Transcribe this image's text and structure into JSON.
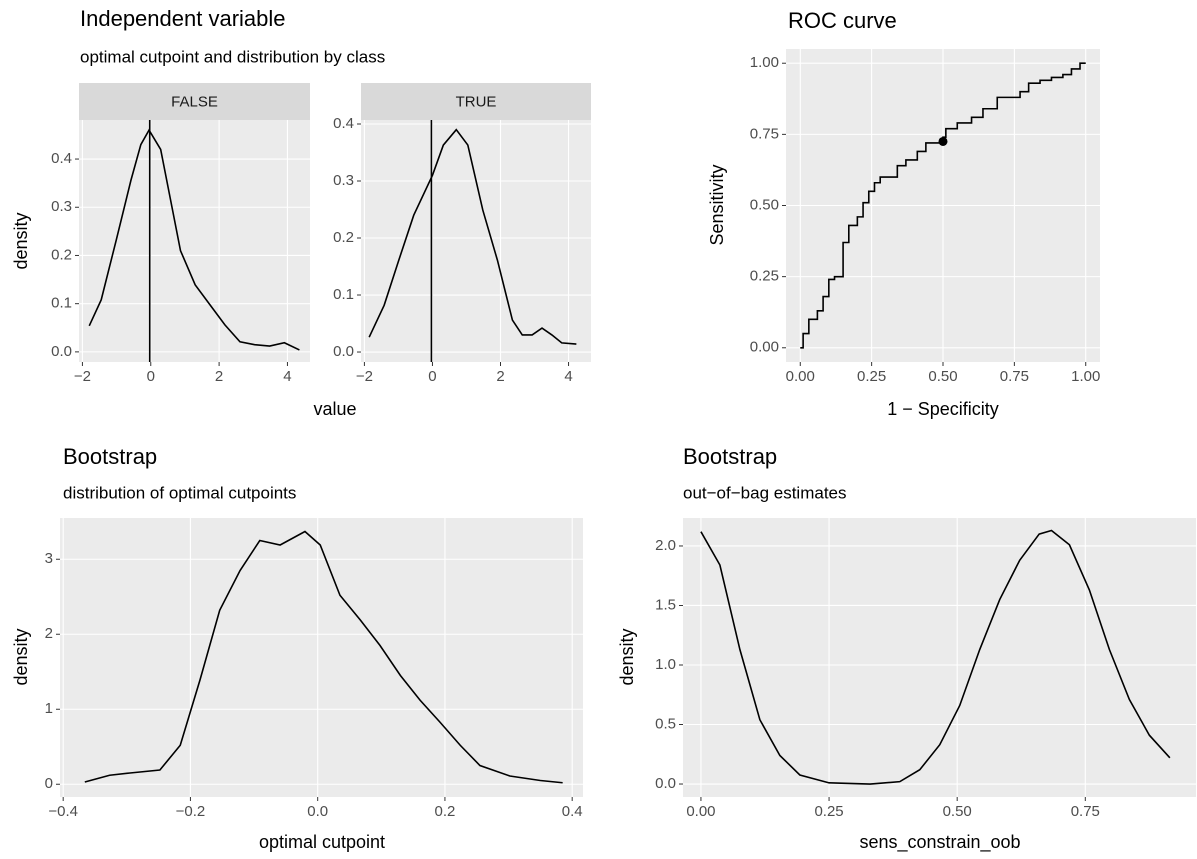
{
  "chart_data": [
    {
      "type": "line",
      "title": "Independent variable",
      "subtitle": "optimal cutpoint and distribution by class",
      "xlabel": "value",
      "ylabel": "density",
      "xlim": [
        -2.1,
        4.66
      ],
      "xticks": [
        {
          "value": -2,
          "label": "−2"
        },
        0,
        2,
        4
      ],
      "facets": [
        {
          "name": "FALSE",
          "color": "#000000",
          "vline": -0.03,
          "ylim": [
            -0.021,
            0.481
          ],
          "yticks": [
            {
              "value": 0,
              "label": "0.0"
            },
            0.1,
            0.2,
            0.3,
            0.4
          ],
          "x": [
            -1.8,
            -1.45,
            -1.01,
            -0.58,
            -0.29,
            -0.05,
            0.29,
            0.58,
            0.87,
            1.3,
            1.74,
            2.17,
            2.61,
            3.04,
            3.48,
            3.91,
            4.35
          ],
          "values": [
            0.054,
            0.108,
            0.232,
            0.356,
            0.43,
            0.46,
            0.42,
            0.315,
            0.21,
            0.139,
            0.097,
            0.056,
            0.021,
            0.015,
            0.012,
            0.019,
            0.004
          ]
        },
        {
          "name": "TRUE",
          "color": "#000000",
          "vline": -0.03,
          "ylim": [
            -0.0175,
            0.407
          ],
          "yticks": [
            {
              "value": 0,
              "label": "0.0"
            },
            0.1,
            0.2,
            0.3,
            0.4
          ],
          "x": [
            -1.86,
            -1.42,
            -0.99,
            -0.55,
            0.0,
            0.32,
            0.7,
            1.04,
            1.48,
            1.91,
            2.35,
            2.64,
            2.93,
            3.22,
            3.51,
            3.8,
            4.23
          ],
          "values": [
            0.026,
            0.082,
            0.161,
            0.24,
            0.31,
            0.363,
            0.39,
            0.363,
            0.249,
            0.161,
            0.056,
            0.03,
            0.03,
            0.042,
            0.03,
            0.016,
            0.014
          ]
        }
      ]
    },
    {
      "type": "step",
      "title": "ROC curve",
      "xlabel": "1 − Specificity",
      "ylabel": "Sensitivity",
      "color": "#000000",
      "xlim": [
        -0.05,
        1.05
      ],
      "ylim": [
        -0.05,
        1.05
      ],
      "xticks": [
        {
          "value": 0,
          "label": "0.00"
        },
        0.25,
        {
          "value": 0.5,
          "label": "0.50"
        },
        0.75,
        {
          "value": 1,
          "label": "1.00"
        }
      ],
      "yticks": [
        {
          "value": 0,
          "label": "0.00"
        },
        0.25,
        {
          "value": 0.5,
          "label": "0.50"
        },
        0.75,
        {
          "value": 1,
          "label": "1.00"
        }
      ],
      "x": [
        0,
        0.01,
        0.01,
        0.03,
        0.03,
        0.06,
        0.06,
        0.08,
        0.08,
        0.1,
        0.1,
        0.12,
        0.12,
        0.15,
        0.15,
        0.17,
        0.17,
        0.2,
        0.2,
        0.22,
        0.22,
        0.24,
        0.24,
        0.26,
        0.26,
        0.28,
        0.28,
        0.34,
        0.34,
        0.37,
        0.37,
        0.41,
        0.41,
        0.44,
        0.44,
        0.5,
        0.5,
        0.51,
        0.51,
        0.55,
        0.55,
        0.6,
        0.6,
        0.64,
        0.64,
        0.69,
        0.69,
        0.77,
        0.77,
        0.8,
        0.8,
        0.84,
        0.84,
        0.88,
        0.88,
        0.92,
        0.92,
        0.95,
        0.95,
        0.98,
        0.98,
        1
      ],
      "values": [
        0,
        0,
        0.05,
        0.05,
        0.1,
        0.1,
        0.13,
        0.13,
        0.18,
        0.18,
        0.24,
        0.24,
        0.25,
        0.25,
        0.37,
        0.37,
        0.43,
        0.43,
        0.46,
        0.46,
        0.51,
        0.51,
        0.55,
        0.55,
        0.58,
        0.58,
        0.6,
        0.6,
        0.64,
        0.64,
        0.66,
        0.66,
        0.69,
        0.69,
        0.72,
        0.72,
        0.74,
        0.74,
        0.77,
        0.77,
        0.79,
        0.79,
        0.81,
        0.81,
        0.84,
        0.84,
        0.88,
        0.88,
        0.9,
        0.9,
        0.93,
        0.93,
        0.94,
        0.94,
        0.95,
        0.95,
        0.96,
        0.96,
        0.98,
        0.98,
        1,
        1
      ],
      "point": {
        "x": 0.5,
        "y": 0.725
      }
    },
    {
      "type": "line",
      "title": "Bootstrap",
      "subtitle": "distribution of optimal cutpoints",
      "xlabel": "optimal cutpoint",
      "ylabel": "density",
      "color": "#000000",
      "xlim": [
        -0.405,
        0.417
      ],
      "ylim": [
        -0.17,
        3.55
      ],
      "xticks": [
        {
          "value": -0.4,
          "label": "−0.4"
        },
        {
          "value": -0.2,
          "label": "−0.2"
        },
        {
          "value": 0,
          "label": "0.0"
        },
        0.2,
        0.4
      ],
      "yticks": [
        0,
        1,
        2,
        3
      ],
      "x": [
        -0.366,
        -0.327,
        -0.295,
        -0.248,
        -0.216,
        -0.185,
        -0.154,
        -0.122,
        -0.091,
        -0.059,
        -0.02,
        0.004,
        0.035,
        0.067,
        0.098,
        0.13,
        0.161,
        0.192,
        0.224,
        0.255,
        0.302,
        0.35,
        0.385
      ],
      "values": [
        0.03,
        0.12,
        0.15,
        0.19,
        0.52,
        1.39,
        2.32,
        2.85,
        3.25,
        3.19,
        3.37,
        3.19,
        2.52,
        2.19,
        1.85,
        1.45,
        1.12,
        0.83,
        0.52,
        0.25,
        0.11,
        0.05,
        0.02
      ]
    },
    {
      "type": "line",
      "title": "Bootstrap",
      "subtitle": "out−of−bag estimates",
      "xlabel": "sens_constrain_oob",
      "ylabel": "density",
      "color": "#000000",
      "xlim": [
        -0.035,
        0.966
      ],
      "ylim": [
        -0.109,
        2.235
      ],
      "xticks": [
        {
          "value": 0,
          "label": "0.00"
        },
        0.25,
        {
          "value": 0.5,
          "label": "0.50"
        },
        0.75
      ],
      "yticks": [
        {
          "value": 0,
          "label": "0.0"
        },
        0.5,
        {
          "value": 1,
          "label": "1.0"
        },
        1.5,
        {
          "value": 2,
          "label": "2.0"
        }
      ],
      "x": [
        0,
        0.037,
        0.076,
        0.115,
        0.154,
        0.193,
        0.25,
        0.33,
        0.388,
        0.427,
        0.466,
        0.505,
        0.544,
        0.583,
        0.622,
        0.66,
        0.684,
        0.719,
        0.758,
        0.797,
        0.836,
        0.875,
        0.915
      ],
      "values": [
        2.12,
        1.84,
        1.13,
        0.54,
        0.24,
        0.076,
        0.01,
        0.0,
        0.02,
        0.12,
        0.33,
        0.66,
        1.13,
        1.55,
        1.88,
        2.1,
        2.13,
        2.01,
        1.63,
        1.13,
        0.71,
        0.41,
        0.22
      ]
    }
  ]
}
